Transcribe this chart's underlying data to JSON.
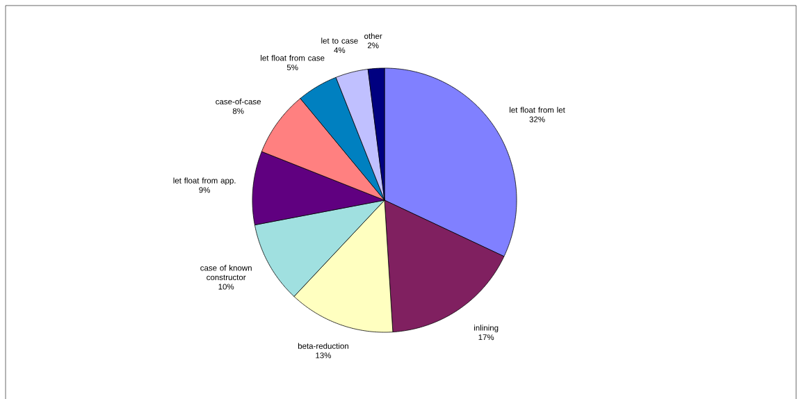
{
  "chart_data": {
    "type": "pie",
    "categories": [
      "let float from let",
      "inlining",
      "beta-reduction",
      "case of known constructor",
      "let float from app.",
      "case-of-case",
      "let float from case",
      "let to case",
      "other"
    ],
    "values": [
      32,
      17,
      13,
      10,
      9,
      8,
      5,
      4,
      2
    ],
    "value_labels": [
      "32%",
      "17%",
      "13%",
      "10%",
      "9%",
      "8%",
      "5%",
      "4%",
      "2%"
    ],
    "colors": [
      "#8080ff",
      "#802060",
      "#ffffc0",
      "#a0e0e0",
      "#600080",
      "#ff8080",
      "#0080c0",
      "#c0c0ff",
      "#000080"
    ]
  }
}
